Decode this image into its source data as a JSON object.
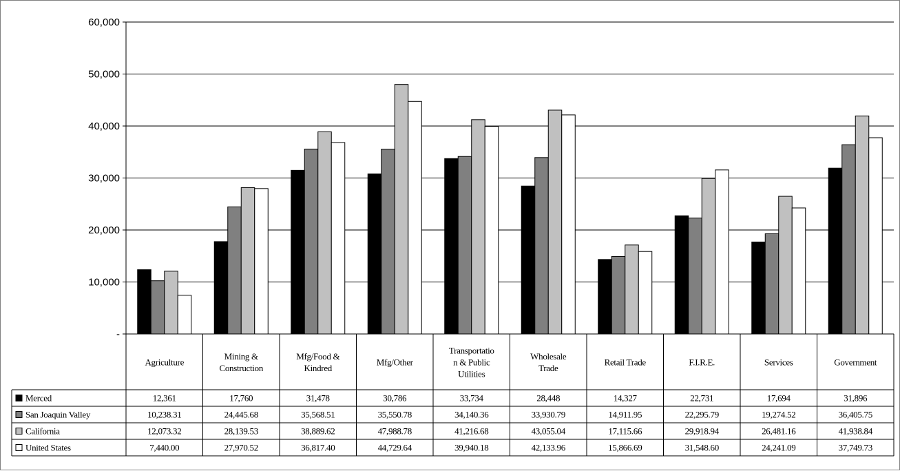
{
  "chart_data": {
    "type": "bar",
    "title": "",
    "xlabel": "",
    "ylabel": "",
    "ylim": [
      0,
      60000
    ],
    "yticks": [
      0,
      10000,
      20000,
      30000,
      40000,
      50000,
      60000
    ],
    "ytick_labels": [
      "-",
      "10,000",
      "20,000",
      "30,000",
      "40,000",
      "50,000",
      "60,000"
    ],
    "grid": true,
    "legend": "data-table-left",
    "categories": [
      [
        "Agriculture"
      ],
      [
        "Mining &",
        "Construction"
      ],
      [
        "Mfg/Food &",
        "Kindred"
      ],
      [
        "Mfg/Other"
      ],
      [
        "Transportatio",
        "n & Public",
        "Utilities"
      ],
      [
        "Wholesale",
        "Trade"
      ],
      [
        "Retail Trade"
      ],
      [
        "F.I.R.E."
      ],
      [
        "Services"
      ],
      [
        "Government"
      ]
    ],
    "series": [
      {
        "name": "Merced",
        "color": "#000000",
        "values": [
          12361,
          17760,
          31478,
          30786,
          33734,
          28448,
          14327,
          22731,
          17694,
          31896
        ],
        "labels": [
          "12,361",
          "17,760",
          "31,478",
          "30,786",
          "33,734",
          "28,448",
          "14,327",
          "22,731",
          "17,694",
          "31,896"
        ]
      },
      {
        "name": "San Joaquin Valley",
        "color": "#808080",
        "values": [
          10238.31,
          24445.68,
          35568.51,
          35550.78,
          34140.36,
          33930.79,
          14911.95,
          22295.79,
          19274.52,
          36405.75
        ],
        "labels": [
          "10,238.31",
          "24,445.68",
          "35,568.51",
          "35,550.78",
          "34,140.36",
          "33,930.79",
          "14,911.95",
          "22,295.79",
          "19,274.52",
          "36,405.75"
        ]
      },
      {
        "name": "California",
        "color": "#c0c0c0",
        "values": [
          12073.32,
          28139.53,
          38889.62,
          47988.78,
          41216.68,
          43055.04,
          17115.66,
          29918.94,
          26481.16,
          41938.84
        ],
        "labels": [
          "12,073.32",
          "28,139.53",
          "38,889.62",
          "47,988.78",
          "41,216.68",
          "43,055.04",
          "17,115.66",
          "29,918.94",
          "26,481.16",
          "41,938.84"
        ]
      },
      {
        "name": "United States",
        "color": "#ffffff",
        "values": [
          7440.0,
          27970.52,
          36817.4,
          44729.64,
          39940.18,
          42133.96,
          15866.69,
          31548.6,
          24241.09,
          37749.73
        ],
        "labels": [
          "7,440.00",
          "27,970.52",
          "36,817.40",
          "44,729.64",
          "39,940.18",
          "42,133.96",
          "15,866.69",
          "31,548.60",
          "24,241.09",
          "37,749.73"
        ]
      }
    ]
  }
}
